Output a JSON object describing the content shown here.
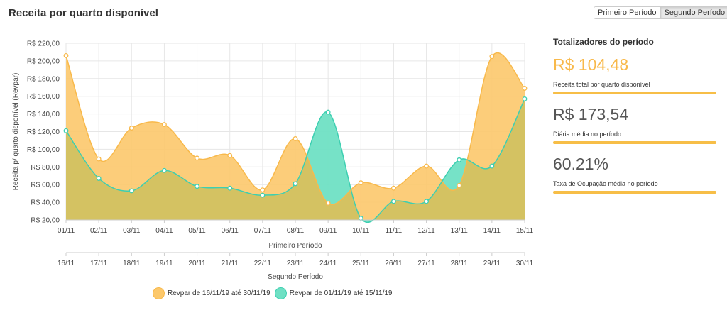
{
  "header": {
    "title": "Receita por quarto disponível",
    "buttons": [
      {
        "label": "Primeiro Período",
        "active": false
      },
      {
        "label": "Segundo Período",
        "active": true
      }
    ]
  },
  "summary": {
    "title": "Totalizadores do período",
    "stats": [
      {
        "value": "R$ 104,48",
        "label": "Receita total por quarto disponível"
      },
      {
        "value": "R$ 173,54",
        "label": "Diária média no período"
      },
      {
        "value": "60.21%",
        "label": "Taxa de Ocupação média no período"
      }
    ]
  },
  "colors": {
    "series_a": "#f8b94b",
    "series_a_fill": "#fcc86b",
    "series_b": "#3dcfb1",
    "series_b_fill": "#6fe0c4",
    "overlap": "#d4c262",
    "accent": "#f8b94b"
  },
  "chart_data": {
    "type": "area",
    "title": "",
    "ylabel": "Receita p/ quarto disponível (Revpar)",
    "ylim": [
      20,
      220
    ],
    "yticks": [
      "R$ 20,00",
      "R$ 40,00",
      "R$ 60,00",
      "R$ 80,00",
      "R$ 100,00",
      "R$ 120,00",
      "R$ 140,00",
      "R$ 160,00",
      "R$ 180,00",
      "R$ 200,00",
      "R$ 220,00"
    ],
    "grid": true,
    "x_axes": [
      {
        "label": "Primeiro Período",
        "categories": [
          "01/11",
          "02/11",
          "03/11",
          "04/11",
          "05/11",
          "06/11",
          "07/11",
          "08/11",
          "09/11",
          "10/11",
          "11/11",
          "12/11",
          "13/11",
          "14/11",
          "15/11"
        ]
      },
      {
        "label": "Segundo Período",
        "categories": [
          "16/11",
          "17/11",
          "18/11",
          "19/11",
          "20/11",
          "21/11",
          "22/11",
          "23/11",
          "24/11",
          "25/11",
          "26/11",
          "27/11",
          "28/11",
          "29/11",
          "30/11"
        ]
      }
    ],
    "series": [
      {
        "name": "Revpar de 16/11/19 até 30/11/19",
        "values": [
          206,
          89,
          124,
          128,
          90,
          93,
          54,
          112,
          39,
          62,
          56,
          81,
          59,
          205,
          169
        ]
      },
      {
        "name": "Revpar de 01/11/19 até 15/11/19",
        "values": [
          121,
          67,
          53,
          76,
          58,
          56,
          48,
          61,
          142,
          22,
          41,
          41,
          88,
          81,
          157
        ]
      }
    ]
  }
}
